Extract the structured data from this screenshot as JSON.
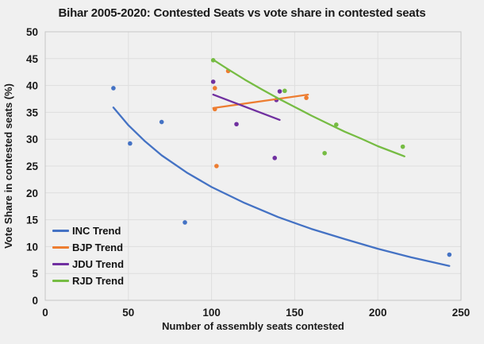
{
  "chart_data": {
    "type": "scatter",
    "title": "Bihar 2005-2020: Contested Seats vs vote share in contested seats",
    "xlabel": "Number of assembly seats contested",
    "ylabel": "Vote Share in contested seats (%)",
    "xlim": [
      0,
      250
    ],
    "ylim": [
      0,
      50
    ],
    "x_ticks": [
      0,
      50,
      100,
      150,
      200,
      250
    ],
    "y_ticks": [
      0,
      5,
      10,
      15,
      20,
      25,
      30,
      35,
      40,
      45,
      50
    ],
    "grid": true,
    "legend_position": "inside-bottom-left",
    "colors": {
      "background": "#F0F0F0",
      "gridline": "#DEDEDE",
      "plot_border": "#C6C6C6",
      "text": "#1A1A1A"
    },
    "series": [
      {
        "name": "INC",
        "legend_label": "INC Trend",
        "color": "#4472C4",
        "points": [
          [
            41,
            39.5
          ],
          [
            51,
            29.2
          ],
          [
            70,
            33.2
          ],
          [
            84,
            14.5
          ],
          [
            243,
            8.5
          ]
        ],
        "trend": [
          [
            41,
            35.9
          ],
          [
            50,
            32.6
          ],
          [
            60,
            29.6
          ],
          [
            70,
            27.0
          ],
          [
            85,
            23.8
          ],
          [
            100,
            21.1
          ],
          [
            120,
            18.1
          ],
          [
            140,
            15.5
          ],
          [
            160,
            13.3
          ],
          [
            180,
            11.4
          ],
          [
            200,
            9.6
          ],
          [
            220,
            8.0
          ],
          [
            243,
            6.4
          ]
        ]
      },
      {
        "name": "BJP",
        "legend_label": "BJP Trend",
        "color": "#ED7D31",
        "points": [
          [
            102,
            35.6
          ],
          [
            102,
            39.5
          ],
          [
            103,
            25.0
          ],
          [
            110,
            42.7
          ],
          [
            157,
            37.7
          ]
        ],
        "trend": [
          [
            101,
            35.8
          ],
          [
            158,
            38.3
          ]
        ]
      },
      {
        "name": "JDU",
        "legend_label": "JDU Trend",
        "color": "#7030A0",
        "points": [
          [
            101,
            40.7
          ],
          [
            115,
            32.8
          ],
          [
            138,
            26.5
          ],
          [
            139,
            37.3
          ],
          [
            141,
            38.9
          ]
        ],
        "trend": [
          [
            101,
            38.3
          ],
          [
            141,
            33.6
          ]
        ]
      },
      {
        "name": "RJD",
        "legend_label": "RJD Trend",
        "color": "#76BC43",
        "points": [
          [
            101,
            44.7
          ],
          [
            144,
            39.0
          ],
          [
            168,
            27.4
          ],
          [
            175,
            32.7
          ],
          [
            215,
            28.6
          ]
        ],
        "trend": [
          [
            101,
            44.8
          ],
          [
            110,
            43.0
          ],
          [
            120,
            41.1
          ],
          [
            130,
            39.3
          ],
          [
            140,
            37.6
          ],
          [
            150,
            36.0
          ],
          [
            160,
            34.4
          ],
          [
            170,
            32.9
          ],
          [
            180,
            31.4
          ],
          [
            190,
            30.1
          ],
          [
            200,
            28.7
          ],
          [
            216,
            26.8
          ]
        ]
      }
    ]
  }
}
